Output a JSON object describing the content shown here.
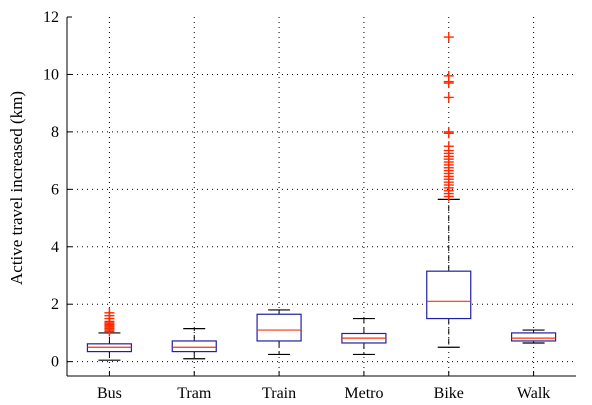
{
  "chart_data": {
    "type": "boxplot",
    "title": "",
    "xlabel": "",
    "ylabel": "Active travel increased (km)",
    "ylim": [
      -0.5,
      12
    ],
    "yticks": [
      0,
      2,
      4,
      6,
      8,
      10,
      12
    ],
    "grid": "horizontal dotted",
    "colors": {
      "box": "#1f1fa8",
      "median": "#ff3300",
      "outlier": "#ff2a00",
      "whisker": "#000000"
    },
    "categories": [
      "Bus",
      "Tram",
      "Train",
      "Metro",
      "Bike",
      "Walk"
    ],
    "boxes": [
      {
        "label": "Bus",
        "whisker_low": 0.05,
        "q1": 0.35,
        "median": 0.5,
        "q3": 0.62,
        "whisker_high": 1.0,
        "outliers": [
          1.05,
          1.1,
          1.15,
          1.2,
          1.25,
          1.3,
          1.35,
          1.4,
          1.5,
          1.6,
          1.7
        ]
      },
      {
        "label": "Tram",
        "whisker_low": 0.1,
        "q1": 0.35,
        "median": 0.5,
        "q3": 0.72,
        "whisker_high": 1.15,
        "outliers": []
      },
      {
        "label": "Train",
        "whisker_low": 0.25,
        "q1": 0.72,
        "median": 1.1,
        "q3": 1.65,
        "whisker_high": 1.8,
        "outliers": []
      },
      {
        "label": "Metro",
        "whisker_low": 0.25,
        "q1": 0.65,
        "median": 0.82,
        "q3": 0.98,
        "whisker_high": 1.5,
        "outliers": []
      },
      {
        "label": "Bike",
        "whisker_low": 0.5,
        "q1": 1.5,
        "median": 2.1,
        "q3": 3.15,
        "whisker_high": 5.65,
        "outliers": [
          5.75,
          5.85,
          5.95,
          6.05,
          6.15,
          6.25,
          6.35,
          6.45,
          6.55,
          6.65,
          6.75,
          6.85,
          6.95,
          7.05,
          7.15,
          7.25,
          7.35,
          7.5,
          7.95,
          8.0,
          9.2,
          9.7,
          9.75,
          9.95,
          11.3
        ]
      },
      {
        "label": "Walk",
        "whisker_low": 0.65,
        "q1": 0.72,
        "median": 0.82,
        "q3": 1.0,
        "whisker_high": 1.1,
        "outliers": []
      }
    ]
  }
}
